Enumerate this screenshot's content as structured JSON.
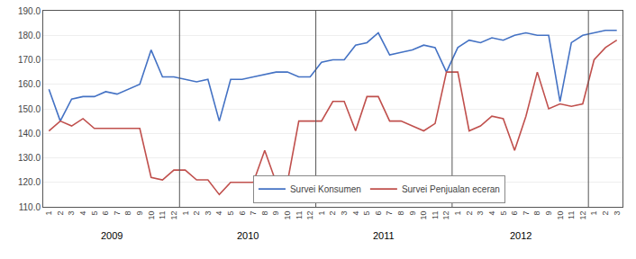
{
  "chart_data": {
    "type": "line",
    "categories": [
      "1",
      "2",
      "3",
      "4",
      "5",
      "6",
      "7",
      "8",
      "9",
      "10",
      "11",
      "12",
      "1",
      "2",
      "3",
      "4",
      "5",
      "6",
      "7",
      "8",
      "9",
      "10",
      "11",
      "12",
      "1",
      "2",
      "3",
      "4",
      "5",
      "6",
      "7",
      "8",
      "9",
      "10",
      "11",
      "12",
      "1",
      "2",
      "3",
      "4",
      "5",
      "6",
      "7",
      "8",
      "9",
      "10",
      "11",
      "12",
      "1",
      "2",
      "3"
    ],
    "series": [
      {
        "name": "Survei Konsumen",
        "color": "#4472C4",
        "values": [
          158,
          145,
          154,
          155,
          155,
          157,
          156,
          158,
          160,
          174,
          163,
          163,
          162,
          161,
          162,
          145,
          162,
          162,
          163,
          164,
          165,
          165,
          163,
          163,
          169,
          170,
          170,
          176,
          177,
          181,
          172,
          173,
          174,
          176,
          175,
          165,
          175,
          178,
          177,
          179,
          178,
          180,
          181,
          180,
          180,
          153,
          177,
          180,
          181,
          182,
          182
        ]
      },
      {
        "name": "Survei Penjualan eceran",
        "color": "#C0504D",
        "values": [
          141,
          145,
          143,
          146,
          142,
          142,
          142,
          142,
          142,
          122,
          121,
          125,
          125,
          121,
          121,
          115,
          120,
          120,
          120,
          133,
          120,
          120,
          145,
          145,
          145,
          153,
          153,
          141,
          155,
          155,
          145,
          145,
          143,
          141,
          144,
          165,
          165,
          141,
          143,
          147,
          146,
          133,
          147,
          165,
          150,
          152,
          151,
          152,
          170,
          175,
          178
        ]
      }
    ],
    "annotations": [
      "2009",
      "2010",
      "2011",
      "2012"
    ],
    "ylim": [
      110,
      190
    ],
    "yticks": [
      {
        "value": 110,
        "label": "110.0"
      },
      {
        "value": 120,
        "label": "120.0"
      },
      {
        "value": 130,
        "label": "130.0"
      },
      {
        "value": 140,
        "label": "140.0"
      },
      {
        "value": 150,
        "label": "150.0"
      },
      {
        "value": 160,
        "label": "160.0"
      },
      {
        "value": 170,
        "label": "170.0"
      },
      {
        "value": 180,
        "label": "180.0"
      },
      {
        "value": 190,
        "label": "190.0"
      }
    ],
    "grid": true,
    "legend": "lower center"
  }
}
